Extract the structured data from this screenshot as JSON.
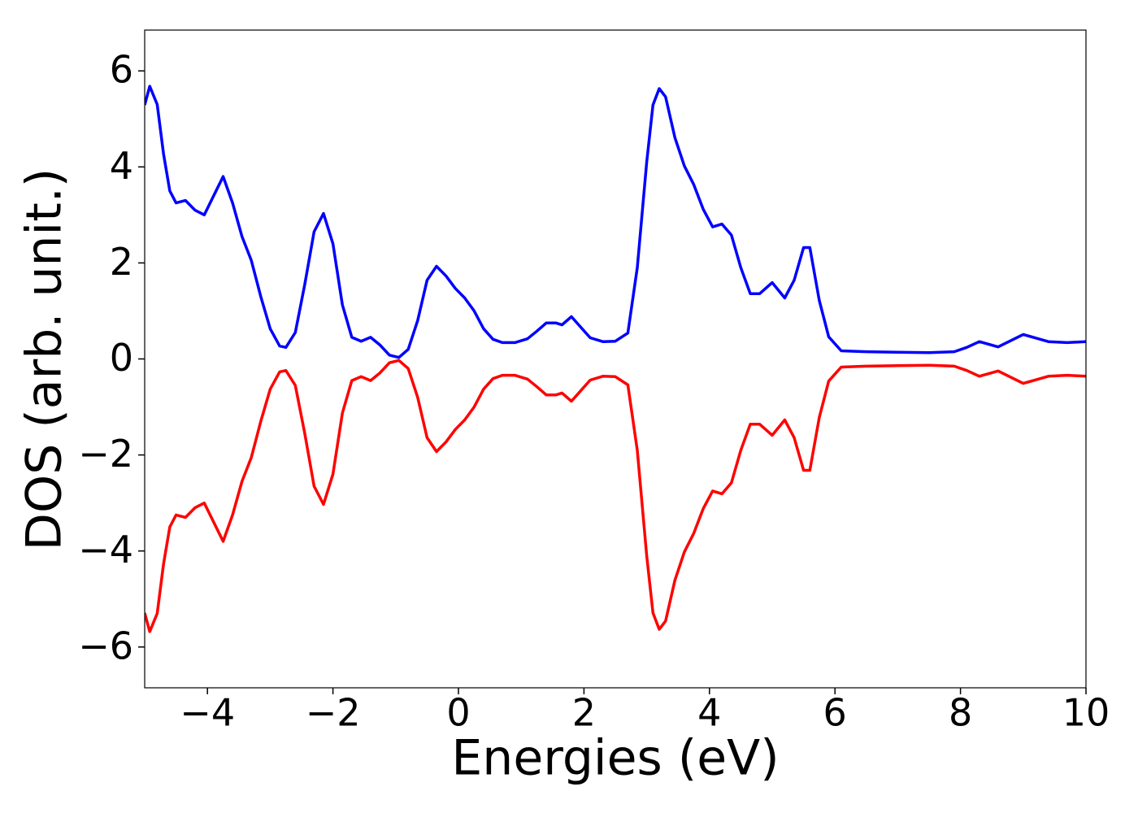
{
  "chart_data": {
    "type": "line",
    "xlabel": "Energies (eV)",
    "ylabel": "DOS (arb. unit.)",
    "x": [
      -5,
      -4.92,
      -4.8,
      -4.7,
      -4.6,
      -4.5,
      -4.35,
      -4.2,
      -4.05,
      -3.9,
      -3.75,
      -3.6,
      -3.45,
      -3.3,
      -3.15,
      -3.0,
      -2.85,
      -2.75,
      -2.6,
      -2.45,
      -2.3,
      -2.15,
      -2.0,
      -1.85,
      -1.7,
      -1.55,
      -1.4,
      -1.25,
      -1.1,
      -0.95,
      -0.8,
      -0.65,
      -0.5,
      -0.35,
      -0.2,
      -0.05,
      0.1,
      0.25,
      0.4,
      0.55,
      0.7,
      0.9,
      1.1,
      1.25,
      1.4,
      1.55,
      1.65,
      1.8,
      1.95,
      2.1,
      2.3,
      2.5,
      2.7,
      2.85,
      3.0,
      3.1,
      3.2,
      3.3,
      3.45,
      3.6,
      3.75,
      3.9,
      4.05,
      4.2,
      4.35,
      4.5,
      4.65,
      4.8,
      5.0,
      5.2,
      5.35,
      5.5,
      5.6,
      5.75,
      5.9,
      6.1,
      6.5,
      7.0,
      7.5,
      7.9,
      8.1,
      8.3,
      8.6,
      9.0,
      9.4,
      9.7,
      10
    ],
    "series": [
      {
        "color": "#0000ff",
        "values": [
          5.29,
          5.68,
          5.3,
          4.27,
          3.5,
          3.25,
          3.3,
          3.1,
          3.0,
          3.4,
          3.8,
          3.25,
          2.55,
          2.05,
          1.3,
          0.63,
          0.27,
          0.24,
          0.55,
          1.55,
          2.65,
          3.03,
          2.4,
          1.13,
          0.45,
          0.37,
          0.45,
          0.29,
          0.08,
          0.03,
          0.2,
          0.8,
          1.64,
          1.93,
          1.73,
          1.47,
          1.27,
          1.0,
          0.63,
          0.41,
          0.34,
          0.34,
          0.42,
          0.58,
          0.75,
          0.75,
          0.71,
          0.88,
          0.66,
          0.44,
          0.36,
          0.37,
          0.54,
          1.9,
          4.1,
          5.29,
          5.63,
          5.46,
          4.61,
          4.02,
          3.63,
          3.12,
          2.75,
          2.81,
          2.58,
          1.9,
          1.36,
          1.36,
          1.59,
          1.27,
          1.64,
          2.32,
          2.32,
          1.22,
          0.46,
          0.17,
          0.15,
          0.14,
          0.13,
          0.15,
          0.24,
          0.36,
          0.25,
          0.51,
          0.36,
          0.34,
          0.36
        ]
      },
      {
        "color": "#ff0000",
        "values": [
          -5.29,
          -5.68,
          -5.3,
          -4.27,
          -3.5,
          -3.25,
          -3.3,
          -3.1,
          -3.0,
          -3.4,
          -3.8,
          -3.25,
          -2.55,
          -2.05,
          -1.3,
          -0.63,
          -0.27,
          -0.24,
          -0.55,
          -1.55,
          -2.65,
          -3.03,
          -2.4,
          -1.13,
          -0.45,
          -0.37,
          -0.45,
          -0.29,
          -0.08,
          -0.03,
          -0.2,
          -0.8,
          -1.64,
          -1.93,
          -1.73,
          -1.47,
          -1.27,
          -1.0,
          -0.63,
          -0.41,
          -0.34,
          -0.34,
          -0.42,
          -0.58,
          -0.75,
          -0.75,
          -0.71,
          -0.88,
          -0.66,
          -0.44,
          -0.36,
          -0.37,
          -0.54,
          -1.9,
          -4.1,
          -5.29,
          -5.63,
          -5.46,
          -4.61,
          -4.02,
          -3.63,
          -3.12,
          -2.75,
          -2.81,
          -2.58,
          -1.9,
          -1.36,
          -1.36,
          -1.59,
          -1.27,
          -1.64,
          -2.32,
          -2.32,
          -1.22,
          -0.46,
          -0.17,
          -0.15,
          -0.14,
          -0.13,
          -0.15,
          -0.24,
          -0.36,
          -0.25,
          -0.51,
          -0.36,
          -0.34,
          -0.36
        ]
      }
    ],
    "xlim": [
      -5,
      10
    ],
    "xticks": [
      {
        "value": -4,
        "label": "−4"
      },
      {
        "value": -2,
        "label": "−2"
      },
      0,
      2,
      4,
      6,
      8,
      10
    ],
    "ylim": [
      -6.85,
      6.85
    ],
    "yticks": [
      {
        "value": -6,
        "label": "−6"
      },
      {
        "value": -4,
        "label": "−4"
      },
      {
        "value": -2,
        "label": "−2"
      },
      0,
      2,
      4,
      6
    ],
    "grid": false
  }
}
